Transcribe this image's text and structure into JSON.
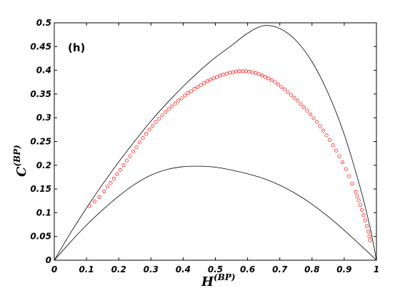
{
  "chart_data": {
    "type": "scatter",
    "panel_label": "(h)",
    "xlabel": {
      "main": "H",
      "sup": "(BP)"
    },
    "ylabel": {
      "main": "C",
      "sup": "(BP)"
    },
    "xlim": [
      0,
      1
    ],
    "ylim": [
      0,
      0.5
    ],
    "xticks": [
      "0",
      "0.1",
      "0.2",
      "0.3",
      "0.4",
      "0.5",
      "0.6",
      "0.7",
      "0.8",
      "0.9",
      "1"
    ],
    "yticks": [
      "0",
      "0.05",
      "0.1",
      "0.15",
      "0.2",
      "0.25",
      "0.3",
      "0.35",
      "0.4",
      "0.45",
      "0.5"
    ],
    "grid": false,
    "colors": {
      "series": "#ff0000",
      "bounds": "#000000"
    },
    "bounds": {
      "upper": [
        [
          0,
          0
        ],
        [
          0.05,
          0.057
        ],
        [
          0.1,
          0.11
        ],
        [
          0.15,
          0.16
        ],
        [
          0.2,
          0.207
        ],
        [
          0.25,
          0.251
        ],
        [
          0.3,
          0.293
        ],
        [
          0.35,
          0.331
        ],
        [
          0.4,
          0.366
        ],
        [
          0.45,
          0.398
        ],
        [
          0.5,
          0.427
        ],
        [
          0.55,
          0.452
        ],
        [
          0.6,
          0.478
        ],
        [
          0.65,
          0.494
        ],
        [
          0.7,
          0.488
        ],
        [
          0.75,
          0.463
        ],
        [
          0.8,
          0.418
        ],
        [
          0.85,
          0.352
        ],
        [
          0.9,
          0.265
        ],
        [
          0.95,
          0.152
        ],
        [
          0.98,
          0.07
        ],
        [
          1.0,
          0
        ]
      ],
      "lower": [
        [
          0,
          0
        ],
        [
          0.05,
          0.038
        ],
        [
          0.1,
          0.074
        ],
        [
          0.15,
          0.106
        ],
        [
          0.2,
          0.135
        ],
        [
          0.25,
          0.16
        ],
        [
          0.3,
          0.179
        ],
        [
          0.35,
          0.191
        ],
        [
          0.4,
          0.197
        ],
        [
          0.45,
          0.198
        ],
        [
          0.5,
          0.196
        ],
        [
          0.55,
          0.19
        ],
        [
          0.6,
          0.182
        ],
        [
          0.65,
          0.172
        ],
        [
          0.7,
          0.158
        ],
        [
          0.75,
          0.14
        ],
        [
          0.8,
          0.118
        ],
        [
          0.85,
          0.092
        ],
        [
          0.9,
          0.063
        ],
        [
          0.95,
          0.032
        ],
        [
          0.98,
          0.013
        ],
        [
          1.0,
          0
        ]
      ]
    },
    "series": [
      {
        "values": [
          [
            0.11,
            0.114
          ],
          [
            0.125,
            0.124
          ],
          [
            0.14,
            0.133
          ],
          [
            0.155,
            0.145
          ],
          [
            0.165,
            0.155
          ],
          [
            0.175,
            0.163
          ],
          [
            0.185,
            0.172
          ],
          [
            0.195,
            0.181
          ],
          [
            0.205,
            0.19
          ],
          [
            0.215,
            0.2
          ],
          [
            0.225,
            0.21
          ],
          [
            0.235,
            0.219
          ],
          [
            0.245,
            0.229
          ],
          [
            0.255,
            0.238
          ],
          [
            0.265,
            0.248
          ],
          [
            0.275,
            0.257
          ],
          [
            0.285,
            0.266
          ],
          [
            0.295,
            0.275
          ],
          [
            0.305,
            0.283
          ],
          [
            0.315,
            0.291
          ],
          [
            0.325,
            0.298
          ],
          [
            0.335,
            0.305
          ],
          [
            0.345,
            0.312
          ],
          [
            0.355,
            0.318
          ],
          [
            0.365,
            0.324
          ],
          [
            0.375,
            0.33
          ],
          [
            0.385,
            0.336
          ],
          [
            0.395,
            0.341
          ],
          [
            0.405,
            0.347
          ],
          [
            0.415,
            0.352
          ],
          [
            0.425,
            0.356
          ],
          [
            0.435,
            0.361
          ],
          [
            0.445,
            0.365
          ],
          [
            0.455,
            0.369
          ],
          [
            0.465,
            0.373
          ],
          [
            0.475,
            0.377
          ],
          [
            0.485,
            0.38
          ],
          [
            0.495,
            0.383
          ],
          [
            0.505,
            0.386
          ],
          [
            0.515,
            0.389
          ],
          [
            0.525,
            0.391
          ],
          [
            0.535,
            0.393
          ],
          [
            0.545,
            0.395
          ],
          [
            0.555,
            0.396
          ],
          [
            0.565,
            0.397
          ],
          [
            0.575,
            0.398
          ],
          [
            0.585,
            0.398
          ],
          [
            0.595,
            0.398
          ],
          [
            0.605,
            0.397
          ],
          [
            0.615,
            0.396
          ],
          [
            0.625,
            0.394
          ],
          [
            0.635,
            0.392
          ],
          [
            0.645,
            0.389
          ],
          [
            0.655,
            0.386
          ],
          [
            0.665,
            0.383
          ],
          [
            0.675,
            0.379
          ],
          [
            0.685,
            0.375
          ],
          [
            0.695,
            0.37
          ],
          [
            0.705,
            0.365
          ],
          [
            0.715,
            0.36
          ],
          [
            0.725,
            0.354
          ],
          [
            0.735,
            0.348
          ],
          [
            0.745,
            0.342
          ],
          [
            0.755,
            0.336
          ],
          [
            0.765,
            0.329
          ],
          [
            0.775,
            0.322
          ],
          [
            0.785,
            0.315
          ],
          [
            0.795,
            0.307
          ],
          [
            0.805,
            0.299
          ],
          [
            0.815,
            0.291
          ],
          [
            0.825,
            0.282
          ],
          [
            0.835,
            0.273
          ],
          [
            0.845,
            0.263
          ],
          [
            0.855,
            0.253
          ],
          [
            0.865,
            0.242
          ],
          [
            0.875,
            0.231
          ],
          [
            0.885,
            0.219
          ],
          [
            0.895,
            0.206
          ],
          [
            0.905,
            0.192
          ],
          [
            0.915,
            0.177
          ],
          [
            0.925,
            0.161
          ],
          [
            0.935,
            0.144
          ],
          [
            0.94,
            0.135
          ],
          [
            0.945,
            0.126
          ],
          [
            0.95,
            0.116
          ],
          [
            0.955,
            0.106
          ],
          [
            0.96,
            0.095
          ],
          [
            0.965,
            0.084
          ],
          [
            0.97,
            0.072
          ],
          [
            0.975,
            0.06
          ],
          [
            0.978,
            0.05
          ],
          [
            0.98,
            0.042
          ]
        ]
      }
    ]
  }
}
